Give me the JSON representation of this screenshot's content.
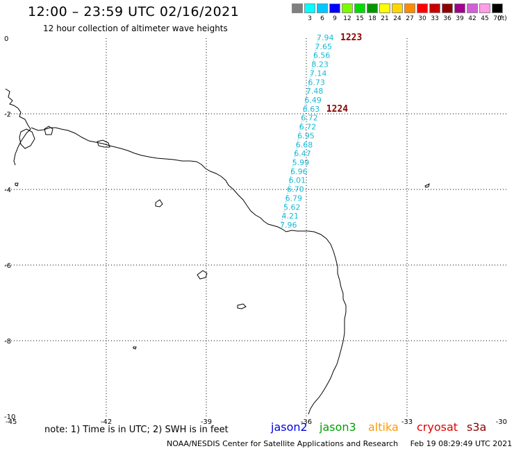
{
  "title": "12:00 – 23:59 UTC 02/16/2021",
  "subtitle": "12 hour collection of altimeter wave heights",
  "legend": {
    "unit": "(ft)",
    "items": [
      {
        "color": "#808080",
        "label": ""
      },
      {
        "color": "#00ffff",
        "label": "3"
      },
      {
        "color": "#00c8ff",
        "label": "6"
      },
      {
        "color": "#0000ff",
        "label": "9"
      },
      {
        "color": "#7cfc00",
        "label": "12"
      },
      {
        "color": "#00dc00",
        "label": "15"
      },
      {
        "color": "#009600",
        "label": "18"
      },
      {
        "color": "#ffff00",
        "label": "21"
      },
      {
        "color": "#ffd700",
        "label": "24"
      },
      {
        "color": "#ff8c00",
        "label": "27"
      },
      {
        "color": "#ff0000",
        "label": "30"
      },
      {
        "color": "#c80000",
        "label": "33"
      },
      {
        "color": "#8b0000",
        "label": "36"
      },
      {
        "color": "#a0008c",
        "label": "39"
      },
      {
        "color": "#d060d8",
        "label": "42"
      },
      {
        "color": "#ff9ee6",
        "label": "45"
      },
      {
        "color": "#000000",
        "label": "70"
      }
    ]
  },
  "axes": {
    "x_labels": [
      "-45",
      "-42",
      "-39",
      "-36",
      "-33",
      "-30"
    ],
    "y_labels": [
      "0",
      "-2",
      "-4",
      "-6",
      "-8",
      "-10"
    ]
  },
  "track": {
    "wave_heights": [
      "7.94",
      "7.65",
      "6.56",
      "8.23",
      "7.14",
      "6.73",
      "7.48",
      "6.49",
      "6.63",
      "6.72",
      "6.72",
      "6.95",
      "6.68",
      "6.47",
      "5.99",
      "6.96",
      "6.01",
      "6.70",
      "6.79",
      "5.62",
      "4.21",
      "7.96"
    ],
    "pass_labels": [
      {
        "text": "1223",
        "value": "7.94"
      },
      {
        "text": "1224",
        "value": "6.63"
      }
    ]
  },
  "note": "note: 1) Time is in UTC; 2) SWH is in feet",
  "satellites": [
    {
      "name": "jason2",
      "color": "#0000e0"
    },
    {
      "name": "jason3",
      "color": "#00a000"
    },
    {
      "name": "altika",
      "color": "#ff9900"
    },
    {
      "name": "cryosat",
      "color": "#e00000"
    },
    {
      "name": "s3a",
      "color": "#8b0000"
    }
  ],
  "footer": {
    "credit": "NOAA/NESDIS Center for Satellite Applications and Research",
    "timestamp": "Feb 19 08:29:49 UTC 2021"
  }
}
